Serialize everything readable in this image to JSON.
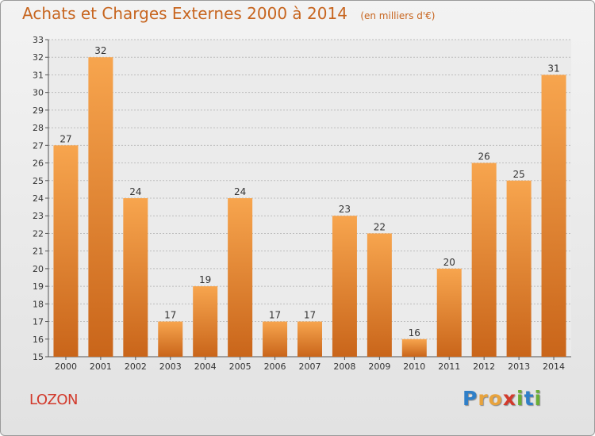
{
  "header": {
    "title": "Achats et Charges Externes 2000 à 2014",
    "unit": "(en milliers d'€)"
  },
  "footer": {
    "commune": "LOZON",
    "brand_letters": [
      "P",
      "r",
      "o",
      "x",
      "i",
      "t",
      "i"
    ],
    "brand_colors": [
      "#2f7fc8",
      "#e8a33d",
      "#e8a33d",
      "#d23a2c",
      "#6aae35",
      "#2f7fc8",
      "#6aae35"
    ]
  },
  "colors": {
    "bar_light": "#f7a54e",
    "bar_dark": "#c9651a",
    "axis_text": "#333333",
    "grid": "#bdbdbd"
  },
  "chart_data": {
    "type": "bar",
    "title": "Achats et Charges Externes 2000 à 2014",
    "subtitle": "(en milliers d'€)",
    "xlabel": "",
    "ylabel": "",
    "categories": [
      "2000",
      "2001",
      "2002",
      "2003",
      "2004",
      "2005",
      "2006",
      "2007",
      "2008",
      "2009",
      "2010",
      "2011",
      "2012",
      "2013",
      "2014"
    ],
    "values": [
      27,
      32,
      24,
      17,
      19,
      24,
      17,
      17,
      23,
      22,
      16,
      20,
      26,
      25,
      31
    ],
    "ylim": [
      15,
      33
    ],
    "yticks": [
      15,
      16,
      17,
      18,
      19,
      20,
      21,
      22,
      23,
      24,
      25,
      26,
      27,
      28,
      29,
      30,
      31,
      32,
      33
    ],
    "grid": true,
    "data_labels": true,
    "legend": "none"
  }
}
